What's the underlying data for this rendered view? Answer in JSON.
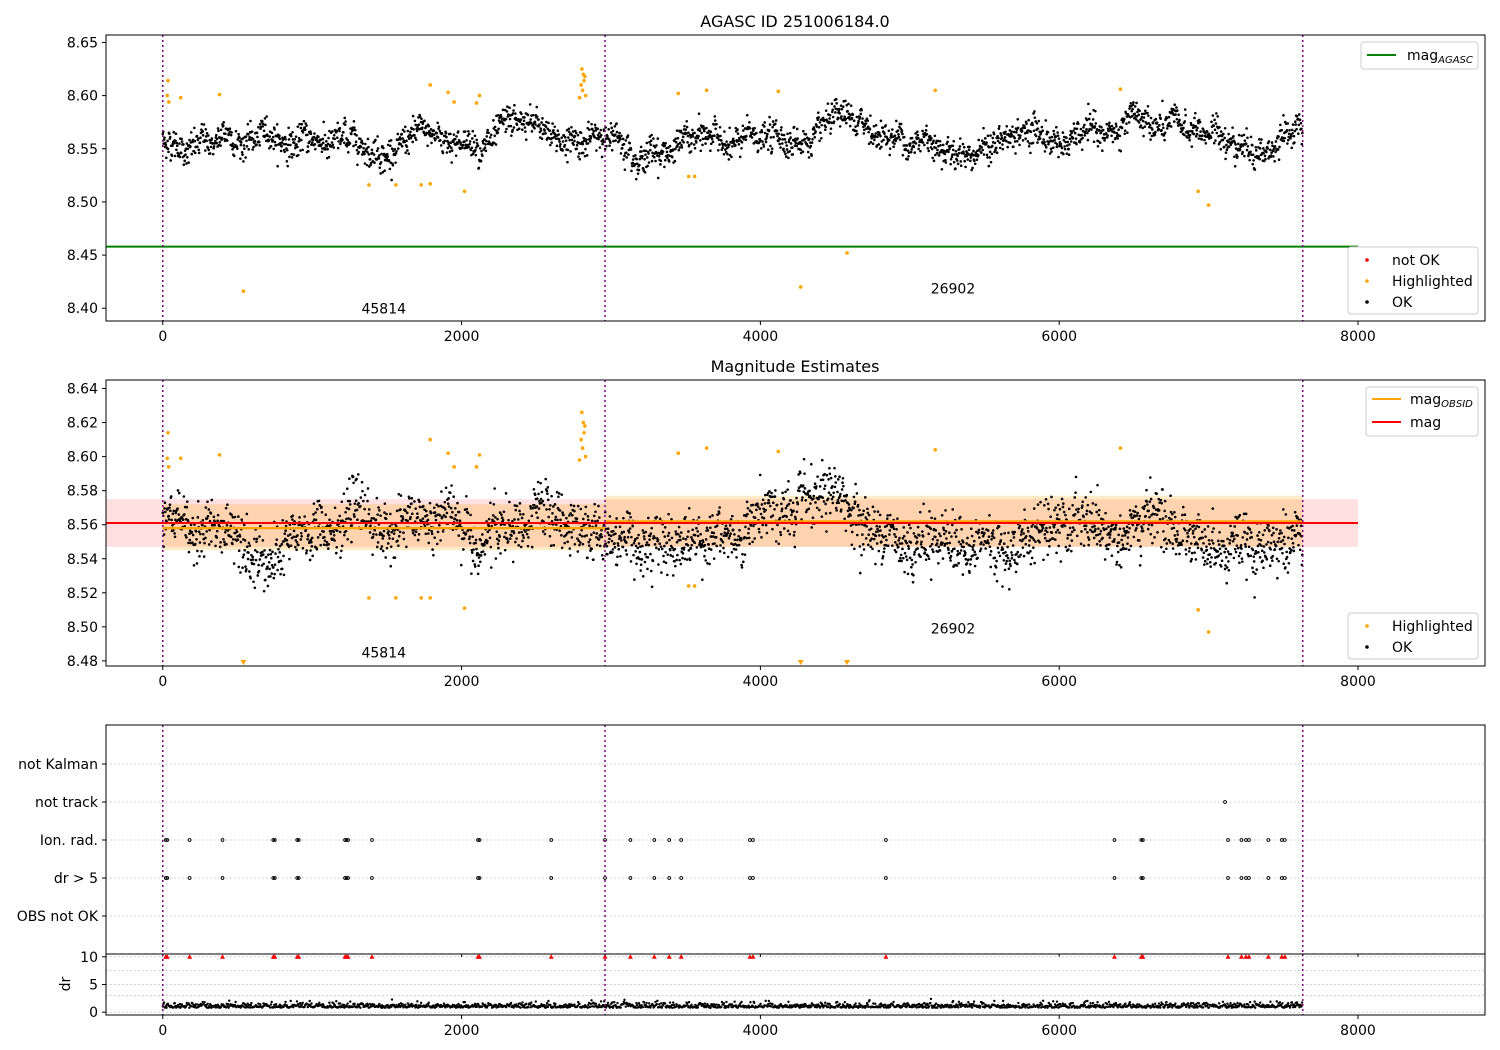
{
  "chart_data": [
    {
      "type": "scatter",
      "title": "AGASC ID 251006184.0",
      "xlim": [
        -380,
        8850
      ],
      "ylim": [
        8.388,
        8.657
      ],
      "xticks": [
        0,
        2000,
        4000,
        6000,
        8000
      ],
      "yticks": [
        8.4,
        8.45,
        8.5,
        8.55,
        8.6,
        8.65
      ],
      "ytick_labels": [
        "8.40",
        "8.45",
        "8.50",
        "8.55",
        "8.60",
        "8.65"
      ],
      "obs_boundaries": [
        0,
        2960,
        7630
      ],
      "mag_agasc": {
        "value": 8.458,
        "x_range": [
          -380,
          8000
        ],
        "color": "#008000",
        "label_base": "mag",
        "label_sub": "AGASC"
      },
      "annotations": [
        {
          "text": "45814",
          "x": 1330,
          "y": 8.395
        },
        {
          "text": "26902",
          "x": 5140,
          "y": 8.414
        }
      ],
      "ok_band": {
        "x_range": [
          0,
          7630
        ],
        "level": 8.558,
        "noise": 0.012
      },
      "highlighted": [
        [
          30,
          8.6
        ],
        [
          40,
          8.594
        ],
        [
          35,
          8.614
        ],
        [
          120,
          8.598
        ],
        [
          380,
          8.601
        ],
        [
          540,
          8.416
        ],
        [
          1380,
          8.516
        ],
        [
          1560,
          8.516
        ],
        [
          1730,
          8.516
        ],
        [
          1790,
          8.517
        ],
        [
          1790,
          8.61
        ],
        [
          1910,
          8.603
        ],
        [
          1950,
          8.594
        ],
        [
          2020,
          8.51
        ],
        [
          2100,
          8.593
        ],
        [
          2120,
          8.6
        ],
        [
          2790,
          8.598
        ],
        [
          2800,
          8.61
        ],
        [
          2805,
          8.625
        ],
        [
          2810,
          8.605
        ],
        [
          2815,
          8.62
        ],
        [
          2820,
          8.614
        ],
        [
          2825,
          8.618
        ],
        [
          2830,
          8.6
        ],
        [
          3450,
          8.602
        ],
        [
          3520,
          8.524
        ],
        [
          3560,
          8.524
        ],
        [
          3640,
          8.605
        ],
        [
          4120,
          8.604
        ],
        [
          4270,
          8.42
        ],
        [
          4580,
          8.452
        ],
        [
          5170,
          8.605
        ],
        [
          6410,
          8.606
        ],
        [
          6930,
          8.51
        ],
        [
          7000,
          8.497
        ]
      ],
      "colors": {
        "ok": "#000000",
        "highlighted": "#ffa500",
        "not_ok": "#ff0000"
      },
      "legend_lines": [
        {
          "label": "mag",
          "sub": "AGASC",
          "color": "#008000"
        }
      ],
      "legend_points": [
        {
          "label": "not OK",
          "color": "#ff0000"
        },
        {
          "label": "Highlighted",
          "color": "#ffa500"
        },
        {
          "label": "OK",
          "color": "#000000"
        }
      ]
    },
    {
      "type": "scatter",
      "title": "Magnitude Estimates",
      "xlim": [
        -380,
        8850
      ],
      "ylim": [
        8.477,
        8.645
      ],
      "xticks": [
        0,
        2000,
        4000,
        6000,
        8000
      ],
      "yticks": [
        8.48,
        8.5,
        8.52,
        8.54,
        8.56,
        8.58,
        8.6,
        8.62,
        8.64
      ],
      "ytick_labels": [
        "8.48",
        "8.50",
        "8.52",
        "8.54",
        "8.56",
        "8.58",
        "8.60",
        "8.62",
        "8.64"
      ],
      "obs_boundaries": [
        0,
        2960,
        7630
      ],
      "mag": {
        "value": 8.561,
        "band": [
          8.547,
          8.575
        ],
        "x_range": [
          -380,
          8000
        ],
        "color": "#ff0000"
      },
      "mag_obsid": [
        {
          "x_range": [
            0,
            2960
          ],
          "value": 8.558,
          "band": [
            8.545,
            8.572
          ]
        },
        {
          "x_range": [
            2960,
            7630
          ],
          "value": 8.562,
          "band": [
            8.547,
            8.577
          ]
        }
      ],
      "annotations": [
        {
          "text": "45814",
          "x": 1330,
          "y": 8.482
        },
        {
          "text": "26902",
          "x": 5140,
          "y": 8.496
        }
      ],
      "ok_band": {
        "x_range": [
          0,
          7630
        ],
        "level": 8.557,
        "noise": 0.014
      },
      "highlighted": [
        [
          30,
          8.599
        ],
        [
          40,
          8.594
        ],
        [
          35,
          8.614
        ],
        [
          120,
          8.599
        ],
        [
          380,
          8.601
        ],
        [
          1380,
          8.517
        ],
        [
          1560,
          8.517
        ],
        [
          1730,
          8.517
        ],
        [
          1790,
          8.517
        ],
        [
          1790,
          8.61
        ],
        [
          1910,
          8.602
        ],
        [
          1950,
          8.594
        ],
        [
          2020,
          8.511
        ],
        [
          2100,
          8.594
        ],
        [
          2120,
          8.601
        ],
        [
          2790,
          8.598
        ],
        [
          2800,
          8.61
        ],
        [
          2805,
          8.626
        ],
        [
          2810,
          8.605
        ],
        [
          2815,
          8.62
        ],
        [
          2820,
          8.614
        ],
        [
          2825,
          8.618
        ],
        [
          2830,
          8.6
        ],
        [
          3450,
          8.602
        ],
        [
          3520,
          8.524
        ],
        [
          3560,
          8.524
        ],
        [
          3640,
          8.605
        ],
        [
          4120,
          8.603
        ],
        [
          5170,
          8.604
        ],
        [
          6410,
          8.605
        ],
        [
          6930,
          8.51
        ],
        [
          7000,
          8.497
        ]
      ],
      "offscale_markers": [
        540,
        4270,
        4580
      ],
      "colors": {
        "ok": "#000000",
        "highlighted": "#ffa500",
        "mag_obsid": "#ffa500"
      },
      "legend_lines": [
        {
          "label": "mag",
          "sub": "OBSID",
          "color": "#ffa500"
        },
        {
          "label": "mag",
          "sub": "",
          "color": "#ff0000"
        }
      ],
      "legend_points": [
        {
          "label": "Highlighted",
          "color": "#ffa500"
        },
        {
          "label": "OK",
          "color": "#000000"
        }
      ]
    },
    {
      "type": "scatter",
      "title": "",
      "xlim": [
        -380,
        8850
      ],
      "xticks": [
        0,
        2000,
        4000,
        6000,
        8000
      ],
      "categories": [
        "not Kalman",
        "not track",
        "Ion. rad.",
        "dr > 5",
        "OBS not OK"
      ],
      "flag_points": {
        "not Kalman": [],
        "not track": [
          7110
        ],
        "Ion. rad.": [
          20,
          30,
          180,
          400,
          740,
          750,
          900,
          910,
          1220,
          1230,
          1240,
          1400,
          2110,
          2120,
          2600,
          2960,
          3130,
          3290,
          3390,
          3470,
          3930,
          3950,
          4840,
          6370,
          6550,
          6560,
          7130,
          7220,
          7250,
          7270,
          7400,
          7490,
          7510
        ],
        "dr > 5": [
          20,
          30,
          180,
          400,
          740,
          750,
          900,
          910,
          1220,
          1230,
          1240,
          1400,
          2110,
          2120,
          2600,
          2960,
          3130,
          3290,
          3390,
          3470,
          3930,
          3950,
          4840,
          6370,
          6550,
          6560,
          7130,
          7220,
          7250,
          7270,
          7400,
          7490,
          7510
        ],
        "OBS not OK": []
      },
      "obs_boundaries": [
        0,
        2960,
        7630
      ]
    },
    {
      "type": "scatter",
      "title": "",
      "ylabel": "dr",
      "xlim": [
        -380,
        8850
      ],
      "ylim": [
        -0.5,
        10.5
      ],
      "xticks": [
        0,
        2000,
        4000,
        6000,
        8000
      ],
      "yticks": [
        0,
        5,
        10
      ],
      "ytick_labels": [
        "0",
        "5",
        "10"
      ],
      "dr_level": 0.8,
      "dr_noise": 0.45,
      "x_range": [
        0,
        7630
      ],
      "clipped_markers": [
        20,
        30,
        180,
        400,
        740,
        750,
        900,
        910,
        1220,
        1230,
        1240,
        1400,
        2110,
        2120,
        2600,
        2960,
        3130,
        3290,
        3390,
        3470,
        3930,
        3950,
        4840,
        6370,
        6550,
        6560,
        7130,
        7220,
        7250,
        7270,
        7400,
        7490,
        7510
      ],
      "obs_boundaries": [
        0,
        2960,
        7630
      ]
    }
  ]
}
